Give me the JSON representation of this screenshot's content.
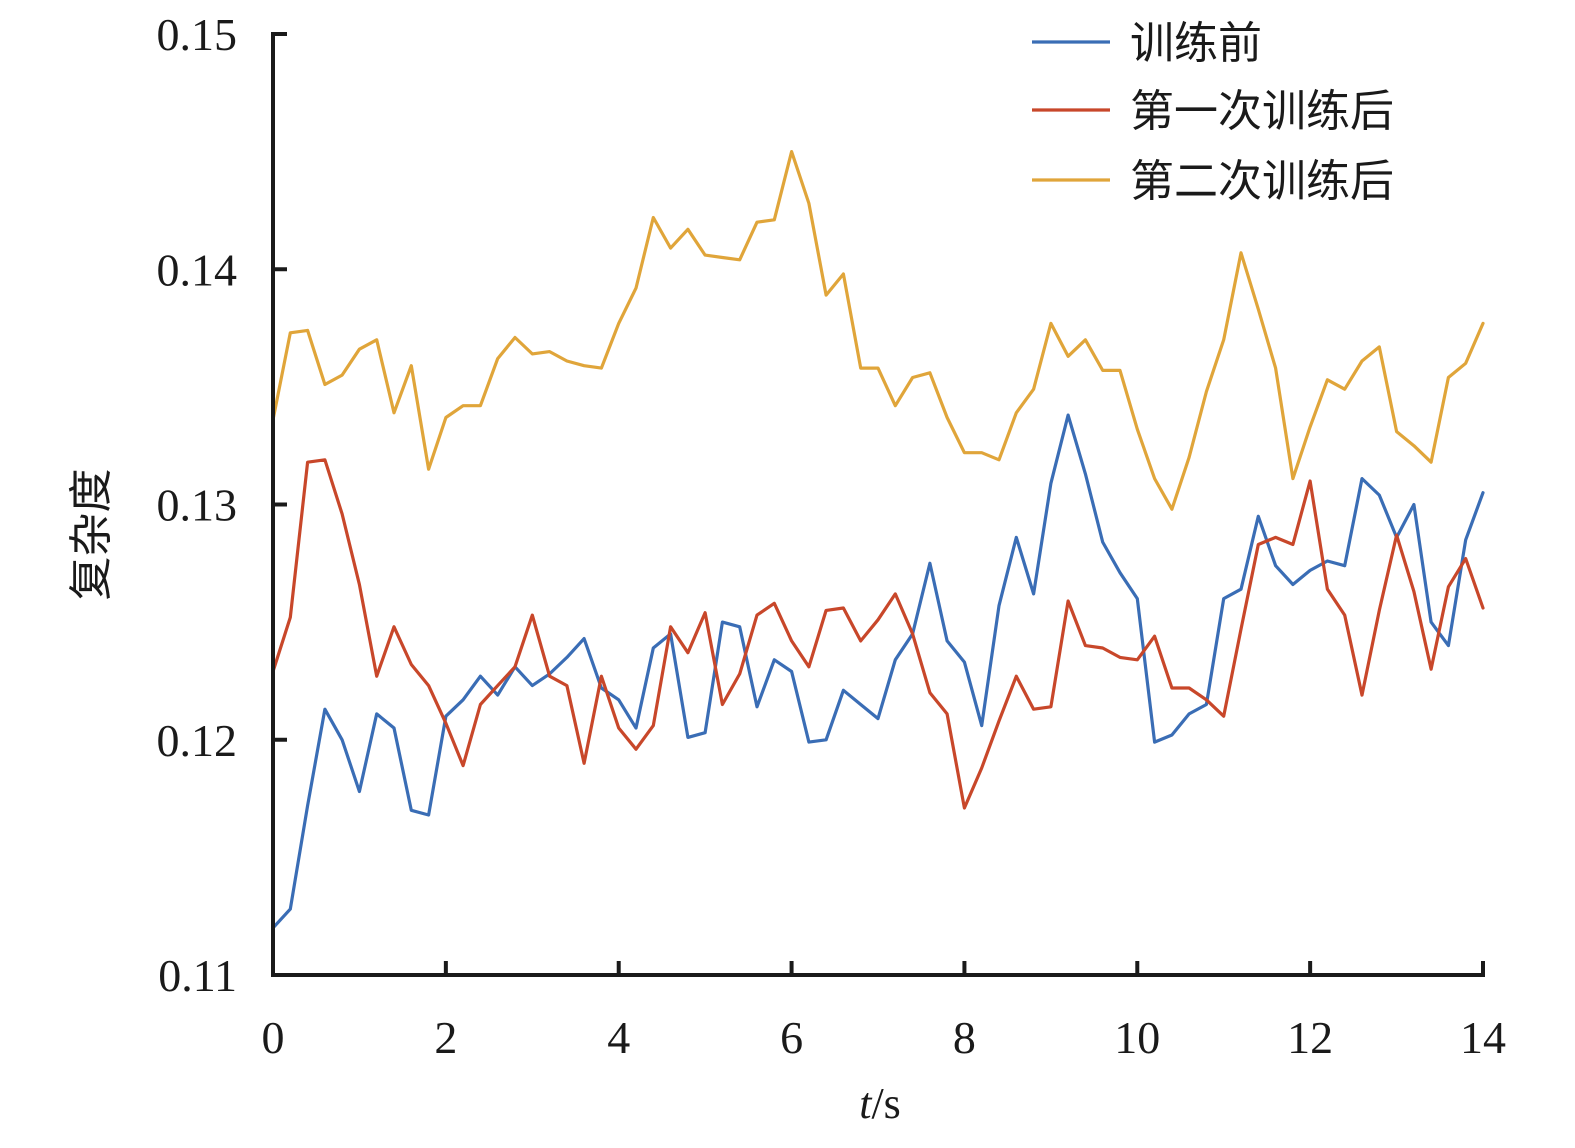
{
  "chart_data": {
    "type": "line",
    "xlabel_var": "t",
    "xlabel_unit": "/s",
    "ylabel": "复杂度",
    "xlim": [
      0,
      14
    ],
    "ylim": [
      0.11,
      0.15
    ],
    "x_ticks": [
      "0",
      "2",
      "4",
      "6",
      "8",
      "10",
      "12",
      "14"
    ],
    "y_ticks": [
      "0.11",
      "0.12",
      "0.13",
      "0.14",
      "0.15"
    ],
    "legend_position": "top-right",
    "grid": false,
    "x": [
      0,
      0.2,
      0.4,
      0.6,
      0.8,
      1.0,
      1.2,
      1.4,
      1.6,
      1.8,
      2.0,
      2.2,
      2.4,
      2.6,
      2.8,
      3.0,
      3.2,
      3.4,
      3.6,
      3.8,
      4.0,
      4.2,
      4.4,
      4.6,
      4.8,
      5.0,
      5.2,
      5.4,
      5.6,
      5.8,
      6.0,
      6.2,
      6.4,
      6.6,
      6.8,
      7.0,
      7.2,
      7.4,
      7.6,
      7.8,
      8.0,
      8.2,
      8.4,
      8.6,
      8.8,
      9.0,
      9.2,
      9.4,
      9.6,
      9.8,
      10.0,
      10.2,
      10.4,
      10.6,
      10.8,
      11.0,
      11.2,
      11.4,
      11.6,
      11.8,
      12.0,
      12.2,
      12.4,
      12.6,
      12.8,
      13.0,
      13.2,
      13.4,
      13.6,
      13.8,
      14.0
    ],
    "series": [
      {
        "name": "训练前",
        "color": "#3a6db5",
        "values": [
          0.112,
          0.1128,
          0.1172,
          0.1213,
          0.12,
          0.1178,
          0.1211,
          0.1205,
          0.117,
          0.1168,
          0.121,
          0.1217,
          0.1227,
          0.1219,
          0.1231,
          0.1223,
          0.1228,
          0.1235,
          0.1243,
          0.1222,
          0.1217,
          0.1205,
          0.1239,
          0.1245,
          0.1201,
          0.1203,
          0.125,
          0.1248,
          0.1214,
          0.1234,
          0.1229,
          0.1199,
          0.12,
          0.1221,
          0.1215,
          0.1209,
          0.1234,
          0.1245,
          0.1275,
          0.1242,
          0.1233,
          0.1206,
          0.1257,
          0.1286,
          0.1262,
          0.1309,
          0.1338,
          0.1313,
          0.1284,
          0.1271,
          0.126,
          0.1199,
          0.1202,
          0.1211,
          0.1215,
          0.126,
          0.1264,
          0.1295,
          0.1274,
          0.1266,
          0.1272,
          0.1276,
          0.1274,
          0.1311,
          0.1304,
          0.1286,
          0.13,
          0.125,
          0.124,
          0.1285,
          0.1305
        ]
      },
      {
        "name": "第一次训练后",
        "color": "#c8472a",
        "values": [
          0.1229,
          0.1252,
          0.1318,
          0.1319,
          0.1296,
          0.1266,
          0.1227,
          0.1248,
          0.1232,
          0.1223,
          0.1207,
          0.1189,
          0.1215,
          0.1223,
          0.1231,
          0.1253,
          0.1227,
          0.1223,
          0.119,
          0.1227,
          0.1205,
          0.1196,
          0.1206,
          0.1248,
          0.1237,
          0.1254,
          0.1215,
          0.1228,
          0.1253,
          0.1258,
          0.1242,
          0.1231,
          0.1255,
          0.1256,
          0.1242,
          0.1251,
          0.1262,
          0.1245,
          0.122,
          0.1211,
          0.1171,
          0.1188,
          0.1208,
          0.1227,
          0.1213,
          0.1214,
          0.1259,
          0.124,
          0.1239,
          0.1235,
          0.1234,
          0.1244,
          0.1222,
          0.1222,
          0.1217,
          0.121,
          0.1247,
          0.1283,
          0.1286,
          0.1283,
          0.131,
          0.1264,
          0.1253,
          0.1219,
          0.1255,
          0.1287,
          0.1263,
          0.123,
          0.1265,
          0.1277,
          0.1256
        ]
      },
      {
        "name": "第二次训练后",
        "color": "#e0a53a",
        "values": [
          0.1336,
          0.1373,
          0.1374,
          0.1351,
          0.1355,
          0.1366,
          0.137,
          0.1339,
          0.1359,
          0.1315,
          0.1337,
          0.1342,
          0.1342,
          0.1362,
          0.1371,
          0.1364,
          0.1365,
          0.1361,
          0.1359,
          0.1358,
          0.1377,
          0.1392,
          0.1422,
          0.1409,
          0.1417,
          0.1406,
          0.1405,
          0.1404,
          0.142,
          0.1421,
          0.145,
          0.1428,
          0.1389,
          0.1398,
          0.1358,
          0.1358,
          0.1342,
          0.1354,
          0.1356,
          0.1337,
          0.1322,
          0.1322,
          0.1319,
          0.1339,
          0.1349,
          0.1377,
          0.1363,
          0.137,
          0.1357,
          0.1357,
          0.1332,
          0.1311,
          0.1298,
          0.132,
          0.1348,
          0.137,
          0.1407,
          0.1383,
          0.1358,
          0.1311,
          0.1333,
          0.1353,
          0.1349,
          0.1361,
          0.1367,
          0.1331,
          0.1325,
          0.1318,
          0.1354,
          0.136,
          0.1377
        ]
      }
    ]
  }
}
